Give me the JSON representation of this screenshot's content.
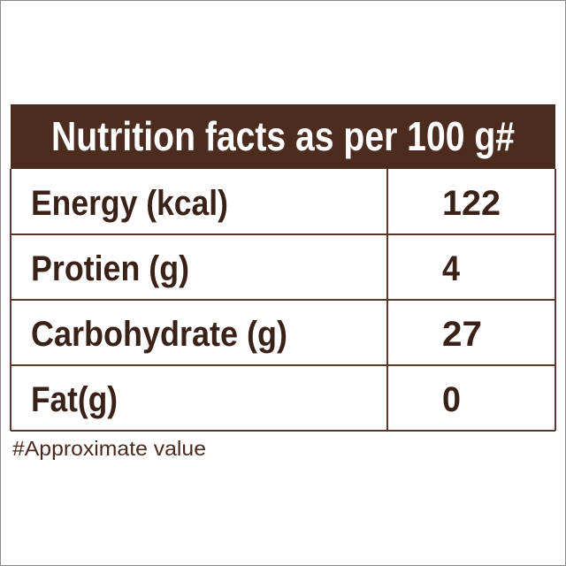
{
  "header": {
    "title": "Nutrition facts as per 100 g#"
  },
  "table": {
    "rows": [
      [
        "Energy (kcal)",
        122
      ],
      [
        "Protien (g)",
        4
      ],
      [
        "Carbohydrate (g)",
        27
      ],
      [
        "Fat(g)",
        0
      ]
    ]
  },
  "footnote": "#Approximate value"
}
